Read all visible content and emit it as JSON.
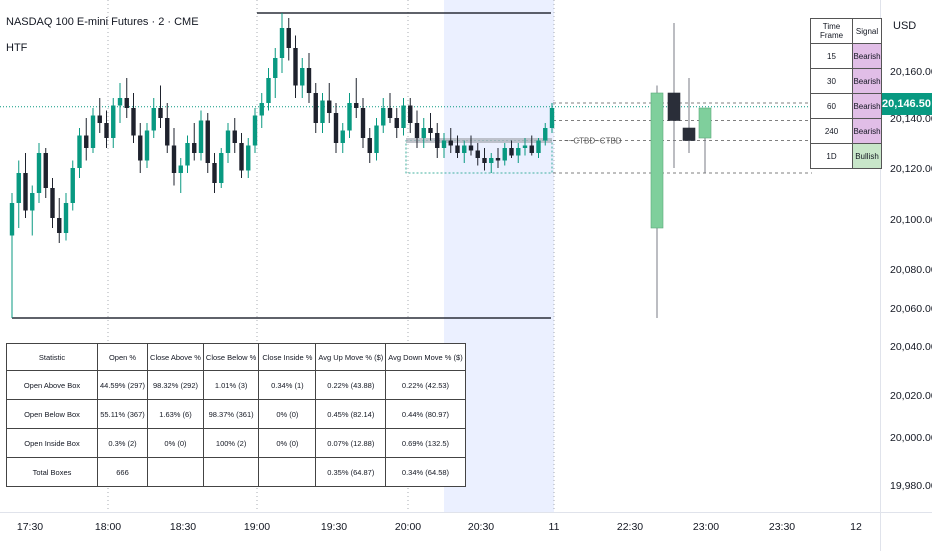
{
  "header": {
    "symbol_title": "NASDAQ 100 E-mini Futures · 2 · CME",
    "indicator": "HTF"
  },
  "price_axis": {
    "currency": "USD",
    "ticks": [
      "20,160.00",
      "20,140.00",
      "20,120.00",
      "20,100.00",
      "20,080.00",
      "20,060.00",
      "20,040.00",
      "20,020.00",
      "20,000.00",
      "19,980.00"
    ],
    "last_price": "20,146.50",
    "last_price_color": "#089981"
  },
  "time_axis": {
    "ticks": [
      "17:30",
      "18:00",
      "18:30",
      "19:00",
      "19:30",
      "20:00",
      "20:30",
      "11",
      "22:30",
      "23:00",
      "23:30",
      "12"
    ]
  },
  "htf_label": "~~CTBD~CTBD",
  "signal_table": {
    "headers": [
      "Time Frame",
      "Signal"
    ],
    "rows": [
      {
        "tf": "15",
        "signal": "Bearish"
      },
      {
        "tf": "30",
        "signal": "Bearish"
      },
      {
        "tf": "60",
        "signal": "Bearish"
      },
      {
        "tf": "240",
        "signal": "Bearish"
      },
      {
        "tf": "1D",
        "signal": "Bullish"
      }
    ],
    "bearish_color": "#e1bee7",
    "bullish_color": "#c8e6c9"
  },
  "stats_table": {
    "headers": [
      "Statistic",
      "Open %",
      "Close Above %",
      "Close Below %",
      "Close Inside %",
      "Avg Up Move % ($)",
      "Avg Down Move % ($)"
    ],
    "rows": [
      [
        "Open Above Box",
        "44.59% (297)",
        "98.32% (292)",
        "1.01% (3)",
        "0.34% (1)",
        "0.22% (43.88)",
        "0.22% (42.53)"
      ],
      [
        "Open Below Box",
        "55.11% (367)",
        "1.63% (6)",
        "98.37% (361)",
        "0% (0)",
        "0.45% (82.14)",
        "0.44% (80.97)"
      ],
      [
        "Open Inside Box",
        "0.3% (2)",
        "0% (0)",
        "100% (2)",
        "0% (0)",
        "0.07% (12.88)",
        "0.69% (132.5)"
      ],
      [
        "Total Boxes",
        "666",
        "",
        "",
        "",
        "0.35% (64.87)",
        "0.34% (64.58)"
      ]
    ]
  },
  "colors": {
    "bull": "#089981",
    "bear": "#1e222d",
    "htf_bull": "#7fcf9c",
    "htf_bear": "#2a2e39",
    "highlight": "#ebf0ff"
  },
  "chart_data": {
    "type": "candlestick",
    "y_unit": "USD",
    "ylim": [
      19970,
      20190
    ],
    "last_price": 20146.5,
    "ltf_candles": [
      {
        "o": 20095,
        "h": 20112,
        "l": 20062,
        "c": 20108
      },
      {
        "o": 20108,
        "h": 20125,
        "l": 20098,
        "c": 20120
      },
      {
        "o": 20120,
        "h": 20128,
        "l": 20102,
        "c": 20105
      },
      {
        "o": 20105,
        "h": 20115,
        "l": 20095,
        "c": 20112
      },
      {
        "o": 20112,
        "h": 20132,
        "l": 20108,
        "c": 20128
      },
      {
        "o": 20128,
        "h": 20130,
        "l": 20110,
        "c": 20114
      },
      {
        "o": 20114,
        "h": 20118,
        "l": 20098,
        "c": 20102
      },
      {
        "o": 20102,
        "h": 20110,
        "l": 20092,
        "c": 20096
      },
      {
        "o": 20096,
        "h": 20112,
        "l": 20093,
        "c": 20108
      },
      {
        "o": 20108,
        "h": 20125,
        "l": 20105,
        "c": 20122
      },
      {
        "o": 20122,
        "h": 20138,
        "l": 20118,
        "c": 20135
      },
      {
        "o": 20135,
        "h": 20142,
        "l": 20125,
        "c": 20130
      },
      {
        "o": 20130,
        "h": 20146,
        "l": 20128,
        "c": 20143
      },
      {
        "o": 20143,
        "h": 20150,
        "l": 20136,
        "c": 20140
      },
      {
        "o": 20140,
        "h": 20145,
        "l": 20130,
        "c": 20134
      },
      {
        "o": 20134,
        "h": 20150,
        "l": 20130,
        "c": 20147
      },
      {
        "o": 20147,
        "h": 20156,
        "l": 20140,
        "c": 20150
      },
      {
        "o": 20150,
        "h": 20158,
        "l": 20142,
        "c": 20146
      },
      {
        "o": 20146,
        "h": 20152,
        "l": 20132,
        "c": 20135
      },
      {
        "o": 20135,
        "h": 20140,
        "l": 20120,
        "c": 20125
      },
      {
        "o": 20125,
        "h": 20140,
        "l": 20122,
        "c": 20137
      },
      {
        "o": 20137,
        "h": 20150,
        "l": 20134,
        "c": 20146
      },
      {
        "o": 20146,
        "h": 20155,
        "l": 20138,
        "c": 20142
      },
      {
        "o": 20142,
        "h": 20148,
        "l": 20128,
        "c": 20131
      },
      {
        "o": 20131,
        "h": 20138,
        "l": 20115,
        "c": 20120
      },
      {
        "o": 20120,
        "h": 20126,
        "l": 20112,
        "c": 20123
      },
      {
        "o": 20123,
        "h": 20135,
        "l": 20120,
        "c": 20132
      },
      {
        "o": 20132,
        "h": 20140,
        "l": 20125,
        "c": 20128
      },
      {
        "o": 20128,
        "h": 20145,
        "l": 20125,
        "c": 20141
      },
      {
        "o": 20141,
        "h": 20144,
        "l": 20120,
        "c": 20124
      },
      {
        "o": 20124,
        "h": 20128,
        "l": 20112,
        "c": 20116
      },
      {
        "o": 20116,
        "h": 20130,
        "l": 20114,
        "c": 20128
      },
      {
        "o": 20128,
        "h": 20140,
        "l": 20124,
        "c": 20137
      },
      {
        "o": 20137,
        "h": 20142,
        "l": 20128,
        "c": 20132
      },
      {
        "o": 20132,
        "h": 20136,
        "l": 20118,
        "c": 20121
      },
      {
        "o": 20121,
        "h": 20134,
        "l": 20118,
        "c": 20131
      },
      {
        "o": 20131,
        "h": 20146,
        "l": 20128,
        "c": 20143
      },
      {
        "o": 20143,
        "h": 20152,
        "l": 20138,
        "c": 20148
      },
      {
        "o": 20148,
        "h": 20162,
        "l": 20145,
        "c": 20158
      },
      {
        "o": 20158,
        "h": 20170,
        "l": 20150,
        "c": 20166
      },
      {
        "o": 20166,
        "h": 20184,
        "l": 20160,
        "c": 20178
      },
      {
        "o": 20178,
        "h": 20182,
        "l": 20165,
        "c": 20170
      },
      {
        "o": 20170,
        "h": 20175,
        "l": 20150,
        "c": 20155
      },
      {
        "o": 20155,
        "h": 20166,
        "l": 20150,
        "c": 20162
      },
      {
        "o": 20162,
        "h": 20168,
        "l": 20148,
        "c": 20152
      },
      {
        "o": 20152,
        "h": 20156,
        "l": 20136,
        "c": 20140
      },
      {
        "o": 20140,
        "h": 20152,
        "l": 20136,
        "c": 20149
      },
      {
        "o": 20149,
        "h": 20156,
        "l": 20140,
        "c": 20144
      },
      {
        "o": 20144,
        "h": 20148,
        "l": 20128,
        "c": 20132
      },
      {
        "o": 20132,
        "h": 20140,
        "l": 20128,
        "c": 20137
      },
      {
        "o": 20137,
        "h": 20152,
        "l": 20134,
        "c": 20148
      },
      {
        "o": 20148,
        "h": 20158,
        "l": 20142,
        "c": 20146
      },
      {
        "o": 20146,
        "h": 20150,
        "l": 20130,
        "c": 20134
      },
      {
        "o": 20134,
        "h": 20138,
        "l": 20124,
        "c": 20128
      },
      {
        "o": 20128,
        "h": 20142,
        "l": 20125,
        "c": 20139
      },
      {
        "o": 20139,
        "h": 20150,
        "l": 20136,
        "c": 20146
      },
      {
        "o": 20146,
        "h": 20152,
        "l": 20140,
        "c": 20142
      },
      {
        "o": 20142,
        "h": 20146,
        "l": 20134,
        "c": 20138
      },
      {
        "o": 20138,
        "h": 20150,
        "l": 20135,
        "c": 20147
      },
      {
        "o": 20147,
        "h": 20150,
        "l": 20136,
        "c": 20140
      },
      {
        "o": 20140,
        "h": 20145,
        "l": 20130,
        "c": 20134
      },
      {
        "o": 20134,
        "h": 20142,
        "l": 20130,
        "c": 20138
      },
      {
        "o": 20138,
        "h": 20144,
        "l": 20133,
        "c": 20136
      },
      {
        "o": 20136,
        "h": 20140,
        "l": 20126,
        "c": 20130
      },
      {
        "o": 20130,
        "h": 20136,
        "l": 20126,
        "c": 20133
      },
      {
        "o": 20133,
        "h": 20138,
        "l": 20128,
        "c": 20131
      },
      {
        "o": 20131,
        "h": 20135,
        "l": 20126,
        "c": 20128
      },
      {
        "o": 20128,
        "h": 20133,
        "l": 20124,
        "c": 20131
      },
      {
        "o": 20131,
        "h": 20135,
        "l": 20127,
        "c": 20129
      },
      {
        "o": 20129,
        "h": 20132,
        "l": 20123,
        "c": 20126
      },
      {
        "o": 20126,
        "h": 20130,
        "l": 20121,
        "c": 20124
      },
      {
        "o": 20124,
        "h": 20128,
        "l": 20120,
        "c": 20126
      },
      {
        "o": 20126,
        "h": 20130,
        "l": 20122,
        "c": 20125
      },
      {
        "o": 20125,
        "h": 20132,
        "l": 20123,
        "c": 20130
      },
      {
        "o": 20130,
        "h": 20133,
        "l": 20126,
        "c": 20127
      },
      {
        "o": 20127,
        "h": 20132,
        "l": 20124,
        "c": 20130
      },
      {
        "o": 20130,
        "h": 20134,
        "l": 20127,
        "c": 20131
      },
      {
        "o": 20131,
        "h": 20135,
        "l": 20127,
        "c": 20128
      },
      {
        "o": 20128,
        "h": 20134,
        "l": 20126,
        "c": 20133
      },
      {
        "o": 20133,
        "h": 20140,
        "l": 20131,
        "c": 20138
      },
      {
        "o": 20138,
        "h": 20148,
        "l": 20136,
        "c": 20146
      }
    ],
    "htf_candles": [
      {
        "o": 20098,
        "h": 20155,
        "l": 20062,
        "c": 20152
      },
      {
        "o": 20152,
        "h": 20180,
        "l": 20122,
        "c": 20141
      },
      {
        "o": 20138,
        "h": 20158,
        "l": 20128,
        "c": 20133
      },
      {
        "o": 20134,
        "h": 20146,
        "l": 20120,
        "c": 20146
      }
    ],
    "levels": [
      {
        "price": 20184,
        "label": "session high"
      },
      {
        "price": 20062,
        "label": "session low"
      },
      {
        "price": 20146.5,
        "label": "last price"
      }
    ]
  }
}
